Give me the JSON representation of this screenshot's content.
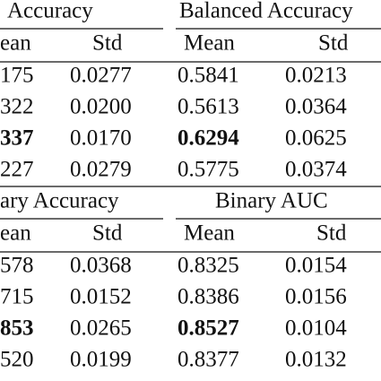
{
  "table": {
    "bold_row": 2,
    "sections": [
      {
        "headers": [
          "Accuracy",
          "Balanced Accuracy"
        ],
        "subheaders": [
          "ean",
          "Std",
          "Mean",
          "Std"
        ],
        "rows": [
          [
            "175",
            "0.0277",
            "0.5841",
            "0.0213"
          ],
          [
            "322",
            "0.0200",
            "0.5613",
            "0.0364"
          ],
          [
            "337",
            "0.0170",
            "0.6294",
            "0.0625"
          ],
          [
            "227",
            "0.0279",
            "0.5775",
            "0.0374"
          ]
        ]
      },
      {
        "headers": [
          "ary Accuracy",
          "Binary AUC"
        ],
        "subheaders": [
          "ean",
          "Std",
          "Mean",
          "Std"
        ],
        "rows": [
          [
            "578",
            "0.0368",
            "0.8325",
            "0.0154"
          ],
          [
            "715",
            "0.0152",
            "0.8386",
            "0.0156"
          ],
          [
            "853",
            "0.0265",
            "0.8527",
            "0.0104"
          ],
          [
            "520",
            "0.0199",
            "0.8377",
            "0.0132"
          ]
        ]
      }
    ]
  }
}
